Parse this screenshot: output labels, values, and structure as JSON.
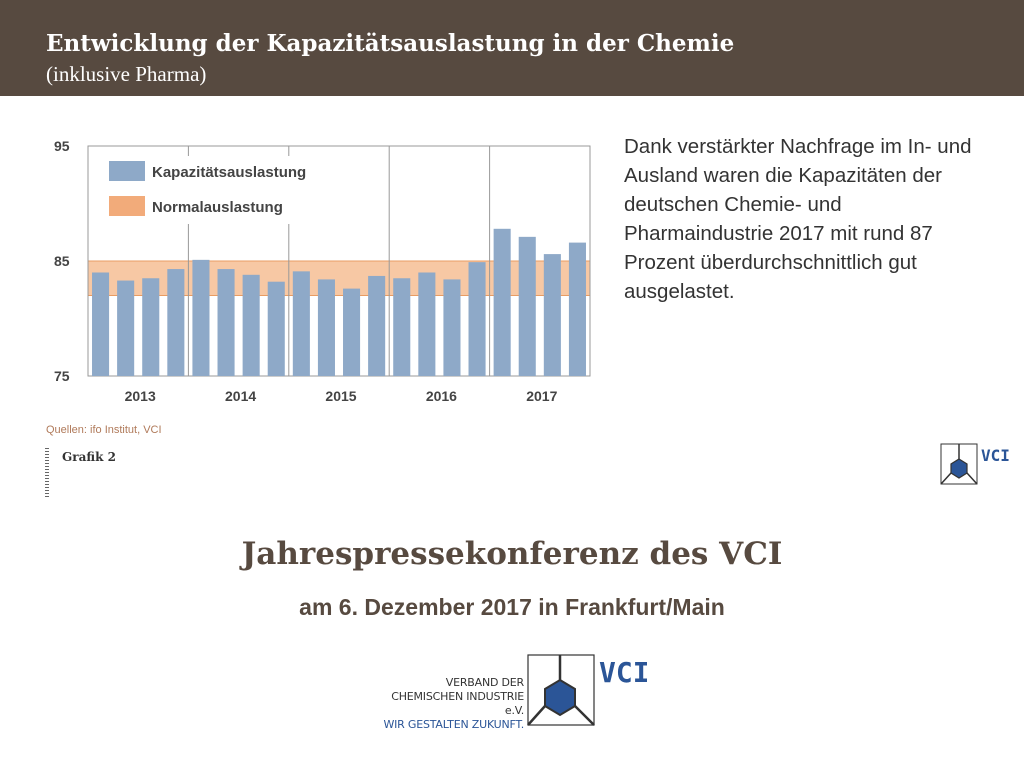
{
  "header": {
    "title": "Entwicklung der Kapazitätsauslastung in der Chemie",
    "subtitle": "(inklusive Pharma)"
  },
  "description": "Dank verstärkter Nachfrage im In- und Ausland waren die Kapazitäten der deutschen Chemie- und Pharmaindustrie 2017 mit rund 87 Prozent überdurchschnittlich gut ausgelastet.",
  "source": "Quellen: ifo Institut, VCI",
  "graphic_label": "Grafik 2",
  "footer": {
    "title": "Jahrespressekonferenz des VCI",
    "subtitle": "am 6. Dezember 2017 in Frankfurt/Main"
  },
  "vci": {
    "logo_text": "VCI",
    "line1": "VERBAND DER",
    "line2": "CHEMISCHEN INDUSTRIE e.V.",
    "line3": "WIR GESTALTEN ZUKUNFT."
  },
  "colors": {
    "header_bg": "#574a40",
    "bar": "#8ea9c8",
    "band": "#f7c8a4",
    "band_line": "#e89c63",
    "brand_blue": "#2b5597"
  },
  "chart_data": {
    "type": "bar",
    "ylim": [
      75,
      95
    ],
    "yticks": [
      75,
      85,
      95
    ],
    "years": [
      "2013",
      "2014",
      "2015",
      "2016",
      "2017"
    ],
    "series": [
      {
        "name": "Kapazitätsauslastung",
        "values": [
          84.0,
          83.3,
          83.5,
          84.3,
          85.1,
          84.3,
          83.8,
          83.2,
          84.1,
          83.4,
          82.6,
          83.7,
          83.5,
          84.0,
          83.4,
          84.9,
          87.8,
          87.1,
          85.6,
          86.6
        ]
      }
    ],
    "band": {
      "name": "Normalauslastung",
      "from": 82.0,
      "to": 85.0
    },
    "legend": [
      "Kapazitätsauslastung",
      "Normalauslastung"
    ],
    "legend_position": "top-left",
    "grid": true
  }
}
